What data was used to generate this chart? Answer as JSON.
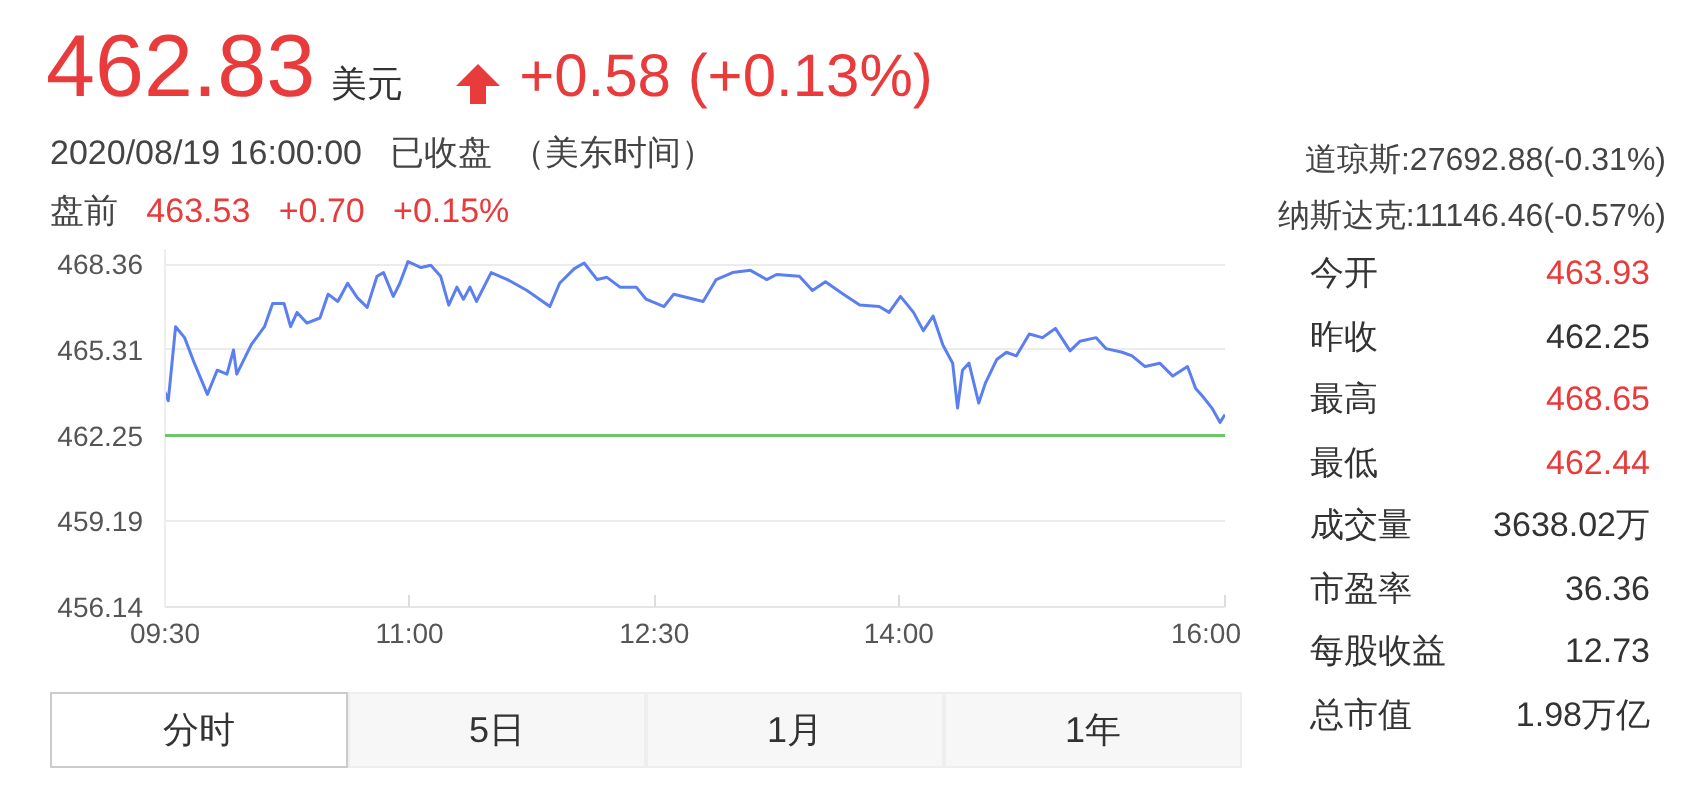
{
  "chart_data": [
    {
      "type": "line",
      "title": "462.83",
      "subtitle": "美元",
      "annotations": [
        "+0.58 (+0.13%)",
        "2020/08/19 16:00:00",
        "已收盘",
        "（美东时间）",
        "盘前",
        "463.53",
        "+0.70",
        "+0.15%",
        "道琼斯:27692.88(-0.31%)",
        "纳斯达克:11146.46(-0.57%)",
        "分时",
        "5日",
        "1月",
        "1年"
      ],
      "series": [
        {
          "color": "#5b7ff0",
          "x": [
            9.5,
            9.52,
            9.565,
            9.62,
            9.68,
            9.76,
            9.82,
            9.88,
            9.92,
            9.94,
            10.03,
            10.11,
            10.16,
            10.23,
            10.27,
            10.31,
            10.37,
            10.45,
            10.5,
            10.56,
            10.62,
            10.68,
            10.74,
            10.8,
            10.84,
            10.9,
            10.94,
            10.99,
            11.07,
            11.13,
            11.19,
            11.24,
            11.29,
            11.33,
            11.37,
            11.41,
            11.5,
            11.6,
            11.72,
            11.86,
            11.92,
            12.01,
            12.07,
            12.15,
            12.21,
            12.29,
            12.39,
            12.45,
            12.56,
            12.62,
            12.8,
            12.88,
            12.98,
            13.09,
            13.19,
            13.25,
            13.39,
            13.47,
            13.55,
            13.66,
            13.76,
            13.88,
            13.94,
            14.01,
            14.09,
            14.15,
            14.21,
            14.27,
            14.33,
            14.36,
            14.39,
            14.43,
            14.49,
            14.53,
            14.6,
            14.66,
            14.72,
            14.8,
            14.88,
            14.96,
            15.05,
            15.11,
            15.21,
            15.27,
            15.37,
            15.43,
            15.51,
            15.6,
            15.68,
            15.77,
            15.82,
            15.86,
            15.92,
            15.97,
            16.0
          ],
          "values": [
            463.8,
            463.49,
            466.13,
            465.74,
            464.83,
            463.72,
            464.58,
            464.44,
            465.3,
            464.44,
            465.5,
            466.13,
            466.96,
            466.96,
            466.13,
            466.64,
            466.26,
            466.44,
            467.29,
            467.03,
            467.68,
            467.16,
            466.82,
            467.93,
            468.06,
            467.21,
            467.68,
            468.45,
            468.24,
            468.32,
            467.93,
            466.9,
            467.54,
            467.11,
            467.54,
            467.03,
            468.06,
            467.81,
            467.42,
            466.85,
            467.68,
            468.2,
            468.4,
            467.81,
            467.89,
            467.54,
            467.54,
            467.11,
            466.85,
            467.29,
            467.03,
            467.81,
            468.06,
            468.14,
            467.81,
            467.99,
            467.93,
            467.42,
            467.73,
            467.29,
            466.9,
            466.85,
            466.64,
            467.21,
            466.64,
            465.99,
            466.51,
            465.48,
            464.83,
            463.23,
            464.58,
            464.83,
            463.41,
            464.11,
            464.96,
            465.22,
            465.09,
            465.87,
            465.74,
            466.07,
            465.27,
            465.61,
            465.74,
            465.35,
            465.22,
            465.09,
            464.71,
            464.83,
            464.37,
            464.71,
            463.93,
            463.67,
            463.23,
            462.72,
            463.0
          ]
        }
      ],
      "xlim": [
        9.5,
        16.0
      ],
      "xticks": [
        {
          "value": 9.5,
          "label": "09:30"
        },
        {
          "value": 11,
          "label": "11:00"
        },
        {
          "value": 12.5,
          "label": "12:30"
        },
        {
          "value": 14,
          "label": "14:00"
        },
        {
          "value": 16,
          "label": "16:00"
        }
      ],
      "ylim": [
        456.14,
        468.9
      ],
      "yticks": [
        456.14,
        459.19,
        462.25,
        465.31,
        468.36
      ],
      "ref_lines": [
        {
          "axis": "y",
          "value": 462.25,
          "color": "#6cc46c"
        }
      ],
      "grid": "y",
      "marker": "none",
      "line_style": "solid"
    },
    {
      "type": "other",
      "categories": [
        "今开",
        "昨收",
        "最高",
        "最低",
        "成交量",
        "市盈率",
        "每股收益",
        "总市值"
      ],
      "value_labels": [
        "463.93",
        "462.25",
        "468.65",
        "462.44",
        "3638.02万",
        "36.36",
        "12.73",
        "1.98万亿"
      ],
      "colors": [
        "#e93b3b",
        "#333333",
        "#e93b3b",
        "#e93b3b",
        "#333333",
        "#333333",
        "#333333",
        "#333333"
      ]
    }
  ]
}
